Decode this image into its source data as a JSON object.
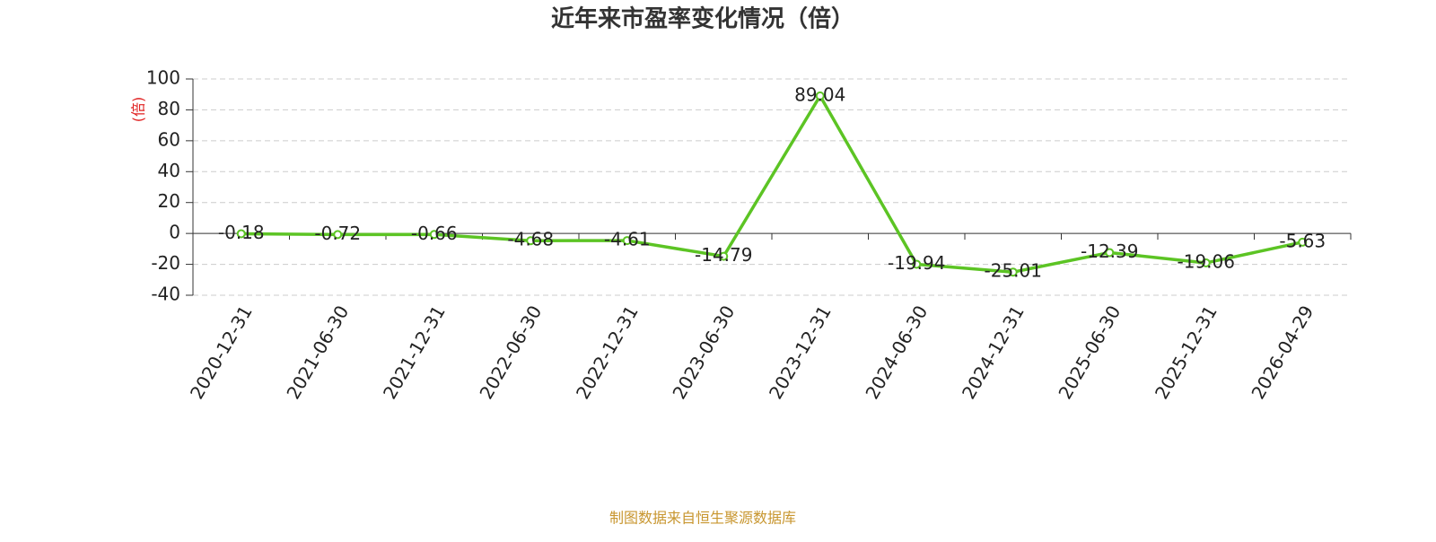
{
  "chart_data": {
    "type": "line",
    "title": "近年来市盈率变化情况（倍）",
    "y_label": "(倍)",
    "categories": [
      "2020-12-31",
      "2021-06-30",
      "2021-12-31",
      "2022-06-30",
      "2022-12-31",
      "2023-06-30",
      "2023-12-31",
      "2024-06-30",
      "2024-12-31",
      "2025-06-30",
      "2025-12-31",
      "2026-04-29"
    ],
    "values": [
      -0.18,
      -0.72,
      -0.66,
      -4.68,
      -4.61,
      -14.79,
      89.04,
      -19.94,
      -25.01,
      -12.39,
      -19.06,
      -5.63
    ],
    "color": "#5cc424",
    "ylim": [
      -40,
      100
    ],
    "yticks": [
      100,
      80,
      60,
      40,
      20,
      0,
      -20,
      -40
    ],
    "grid": true,
    "source": "制图数据来自恒生聚源数据库"
  }
}
